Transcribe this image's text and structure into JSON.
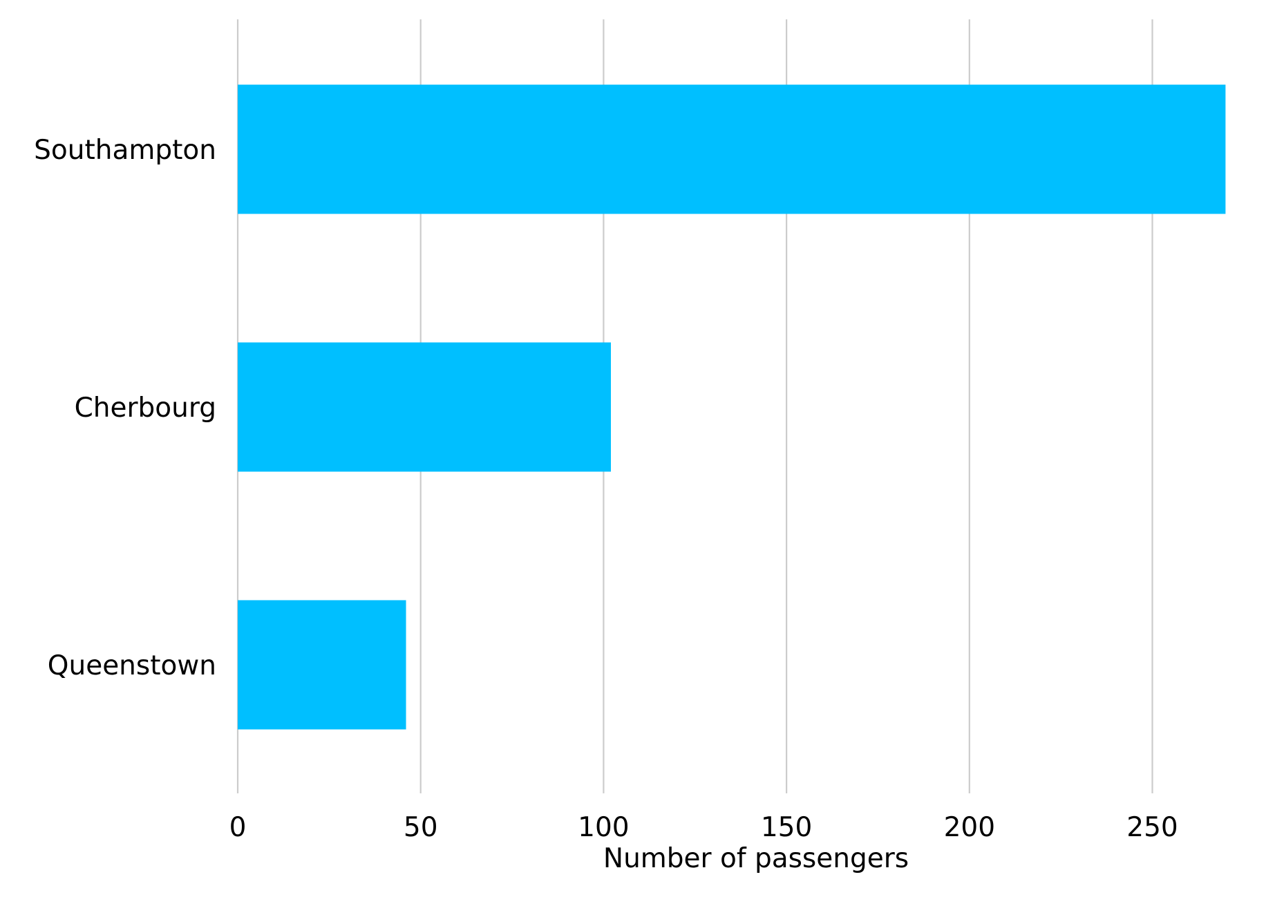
{
  "chart_data": {
    "type": "bar",
    "orientation": "horizontal",
    "categories": [
      "Southampton",
      "Cherbourg",
      "Queenstown"
    ],
    "values": [
      270,
      102,
      46
    ],
    "bar_color": "#00bfff",
    "title": "",
    "xlabel": "Number of passengers",
    "ylabel": "",
    "xlim": [
      0,
      280
    ],
    "xticks": [
      "0",
      "50",
      "100",
      "150",
      "200",
      "250"
    ],
    "grid": "vertical",
    "legend": "none"
  }
}
